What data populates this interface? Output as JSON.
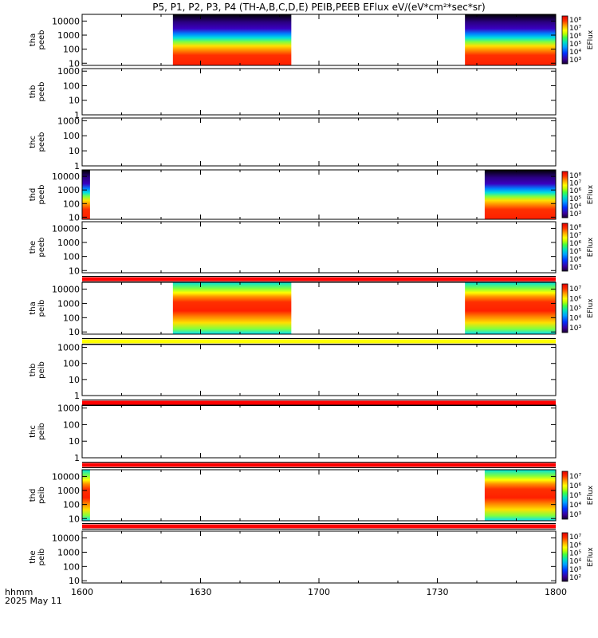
{
  "chart_data": {
    "type": "heatmap",
    "title": "P5, P1, P2, P3, P4 (TH-A,B,C,D,E) PEIB,PEEB EFlux eV/(eV*cm²*sec*sr)",
    "x_axis": {
      "range": [
        "16:00",
        "18:00"
      ],
      "tick_labels": [
        "1600",
        "1630",
        "1700",
        "1730",
        "1800"
      ],
      "corner_label_1": "hhmm",
      "corner_label_2": "2025 May 11"
    },
    "panels": [
      {
        "probe": "tha",
        "species": "peeb",
        "ylim": [
          7,
          30000
        ],
        "log": true,
        "yticks": [
          "10",
          "100",
          "1000",
          "10000"
        ],
        "colorbar": "EFlux",
        "cbar_ticks": [
          "10³",
          "10⁴",
          "10⁵",
          "10⁶",
          "10⁷",
          "10⁸"
        ],
        "data_intervals": [
          [
            "16:23",
            "16:53"
          ],
          [
            "17:37",
            "18:00"
          ]
        ]
      },
      {
        "probe": "thb",
        "species": "peeb",
        "ylim": [
          1,
          1500
        ],
        "log": true,
        "yticks": [
          "1",
          "10",
          "100",
          "1000"
        ],
        "colorbar": "",
        "cbar_ticks": [],
        "data_intervals": []
      },
      {
        "probe": "thc",
        "species": "peeb",
        "ylim": [
          1,
          1500
        ],
        "log": true,
        "yticks": [
          "1",
          "10",
          "100",
          "1000"
        ],
        "colorbar": "",
        "cbar_ticks": [],
        "data_intervals": []
      },
      {
        "probe": "thd",
        "species": "peeb",
        "ylim": [
          7,
          30000
        ],
        "log": true,
        "yticks": [
          "10",
          "100",
          "1000",
          "10000"
        ],
        "colorbar": "EFlux",
        "cbar_ticks": [
          "10³",
          "10⁴",
          "10⁵",
          "10⁶",
          "10⁷",
          "10⁸"
        ],
        "data_intervals": [
          [
            "16:00",
            "16:02"
          ],
          [
            "17:42",
            "18:00"
          ]
        ]
      },
      {
        "probe": "the",
        "species": "peeb",
        "ylim": [
          7,
          30000
        ],
        "log": true,
        "yticks": [
          "10",
          "100",
          "1000",
          "10000"
        ],
        "colorbar": "EFlux",
        "cbar_ticks": [
          "10³",
          "10⁴",
          "10⁵",
          "10⁶",
          "10⁷",
          "10⁸"
        ],
        "data_intervals": []
      },
      {
        "probe": "tha",
        "species": "peib",
        "ylim": [
          7,
          30000
        ],
        "log": true,
        "yticks": [
          "10",
          "100",
          "1000",
          "10000"
        ],
        "colorbar": "EFlux",
        "cbar_ticks": [
          "10³",
          "10⁴",
          "10⁵",
          "10⁶",
          "10⁷"
        ],
        "data_intervals": [
          [
            "16:23",
            "16:53"
          ],
          [
            "17:37",
            "18:00"
          ]
        ]
      },
      {
        "probe": "thb",
        "species": "peib",
        "ylim": [
          1,
          1500
        ],
        "log": true,
        "yticks": [
          "1",
          "10",
          "100",
          "1000"
        ],
        "colorbar": "",
        "cbar_ticks": [],
        "data_intervals": []
      },
      {
        "probe": "thc",
        "species": "peib",
        "ylim": [
          1,
          1500
        ],
        "log": true,
        "yticks": [
          "1",
          "10",
          "100",
          "1000"
        ],
        "colorbar": "",
        "cbar_ticks": [],
        "data_intervals": []
      },
      {
        "probe": "thd",
        "species": "peib",
        "ylim": [
          7,
          30000
        ],
        "log": true,
        "yticks": [
          "10",
          "100",
          "1000",
          "10000"
        ],
        "colorbar": "EFlux",
        "cbar_ticks": [
          "10³",
          "10⁴",
          "10⁵",
          "10⁶",
          "10⁷"
        ],
        "data_intervals": [
          [
            "16:00",
            "16:02"
          ],
          [
            "17:42",
            "18:00"
          ]
        ]
      },
      {
        "probe": "the",
        "species": "peib",
        "ylim": [
          7,
          30000
        ],
        "log": true,
        "yticks": [
          "10",
          "100",
          "1000",
          "10000"
        ],
        "colorbar": "EFlux",
        "cbar_ticks": [
          "10²",
          "10³",
          "10⁴",
          "10⁵",
          "10⁶",
          "10⁷"
        ],
        "data_intervals": []
      }
    ],
    "separator_bands": [
      {
        "after_panel": 4,
        "color": "#ff0000"
      },
      {
        "after_panel": 5,
        "color": "#ffff00"
      },
      {
        "after_panel": 6,
        "color": "#ff0000"
      },
      {
        "after_panel": 7,
        "color": "#ff0000"
      },
      {
        "after_panel": 8,
        "color": "#ff0000"
      }
    ],
    "colormap": [
      "#1a0033",
      "#3a00a0",
      "#0030ff",
      "#00a0ff",
      "#00e0c0",
      "#40ff40",
      "#c0ff00",
      "#ffff00",
      "#ffc000",
      "#ff7000",
      "#ff2000",
      "#e00000"
    ]
  }
}
